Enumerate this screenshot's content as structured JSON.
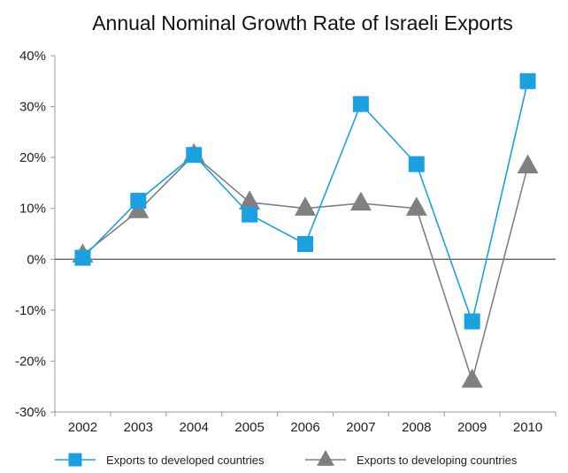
{
  "chart_data": {
    "type": "line",
    "title": "Annual Nominal Growth Rate of Israeli Exports",
    "xlabel": "",
    "ylabel": "",
    "categories": [
      "2002",
      "2003",
      "2004",
      "2005",
      "2006",
      "2007",
      "2008",
      "2009",
      "2010"
    ],
    "ylim": [
      -30,
      40
    ],
    "yticks": [
      40,
      30,
      20,
      10,
      0,
      -10,
      -20,
      -30
    ],
    "ytick_labels": [
      "40%",
      "30%",
      "20%",
      "10%",
      "0%",
      "-10%",
      "-20%",
      "-30%"
    ],
    "grid": false,
    "legend_position": "bottom",
    "series": [
      {
        "name": "Exports to developed countries",
        "marker": "square",
        "color": "#1ba1e2",
        "values": [
          0.3,
          11.5,
          20.5,
          8.8,
          3.0,
          30.5,
          18.7,
          -12.2,
          35.0
        ]
      },
      {
        "name": "Exports to developing countries",
        "marker": "triangle",
        "color": "#808080",
        "values": [
          0.8,
          9.5,
          20.5,
          11.2,
          10.0,
          11.0,
          10.0,
          -23.8,
          18.3
        ]
      }
    ]
  }
}
